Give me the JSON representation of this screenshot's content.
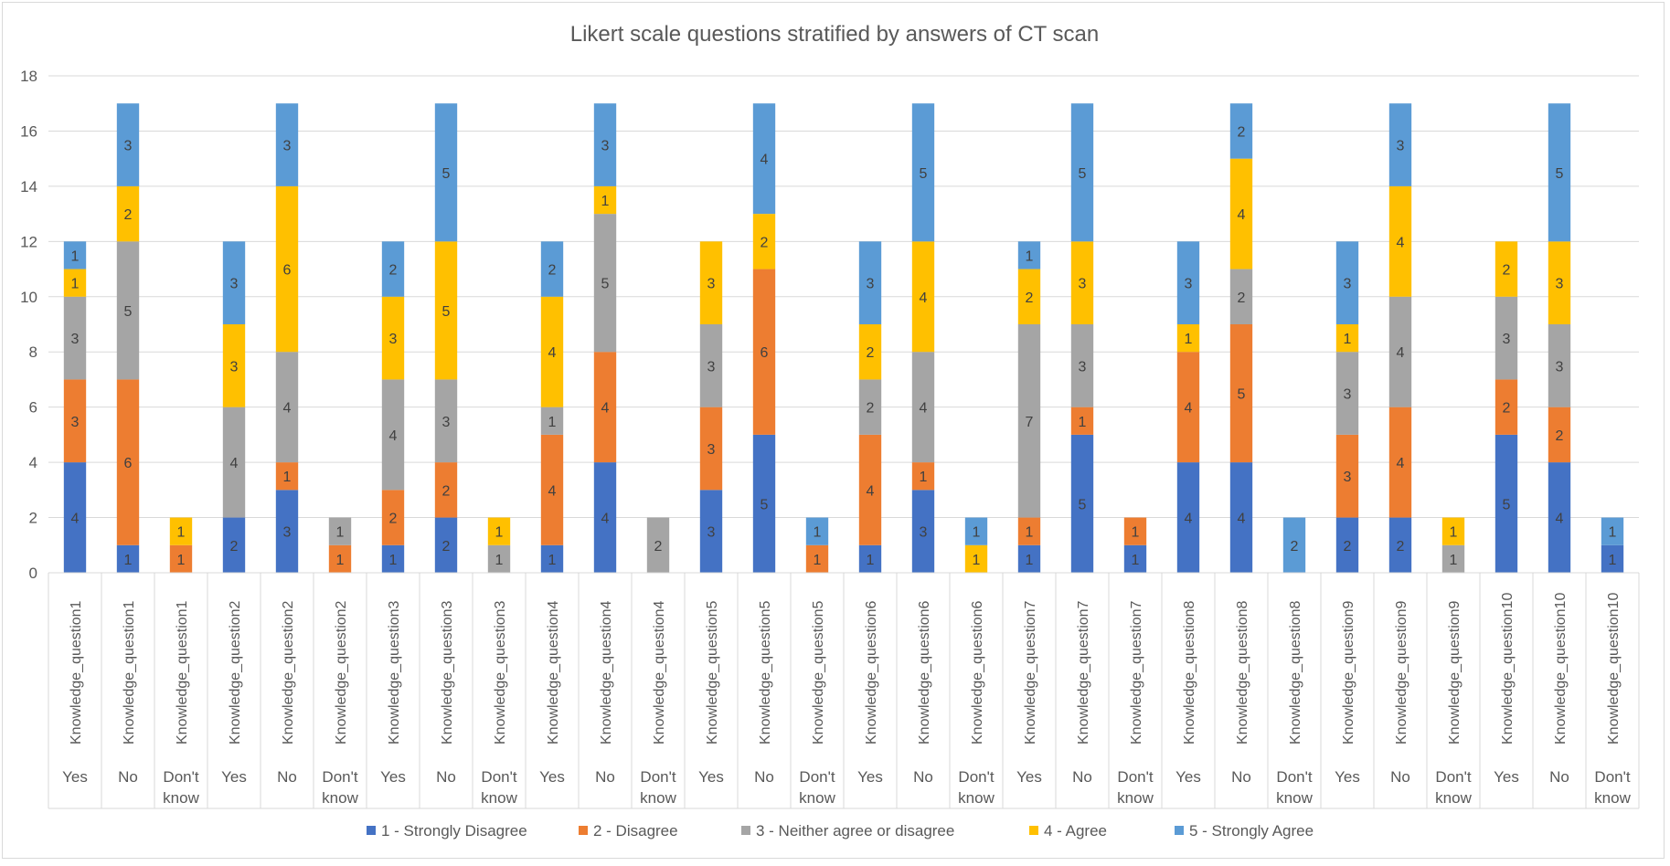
{
  "chart_data": {
    "type": "bar",
    "stacked": true,
    "title": "Likert scale questions stratified by answers of CT scan",
    "xlabel": "",
    "ylabel": "",
    "ylim": [
      0,
      18
    ],
    "yticks": [
      0,
      2,
      4,
      6,
      8,
      10,
      12,
      14,
      16,
      18
    ],
    "grid": true,
    "legend_position": "bottom",
    "categories": [
      {
        "question": "Knowledge_question1",
        "group": "Yes"
      },
      {
        "question": "Knowledge_question1",
        "group": "No"
      },
      {
        "question": "Knowledge_question1",
        "group": "Don't know"
      },
      {
        "question": "Knowledge_question2",
        "group": "Yes"
      },
      {
        "question": "Knowledge_question2",
        "group": "No"
      },
      {
        "question": "Knowledge_question2",
        "group": "Don't know"
      },
      {
        "question": "Knowledge_question3",
        "group": "Yes"
      },
      {
        "question": "Knowledge_question3",
        "group": "No"
      },
      {
        "question": "Knowledge_question3",
        "group": "Don't know"
      },
      {
        "question": "Knowledge_question4",
        "group": "Yes"
      },
      {
        "question": "Knowledge_question4",
        "group": "No"
      },
      {
        "question": "Knowledge_question4",
        "group": "Don't know"
      },
      {
        "question": "Knowledge_question5",
        "group": "Yes"
      },
      {
        "question": "Knowledge_question5",
        "group": "No"
      },
      {
        "question": "Knowledge_question5",
        "group": "Don't know"
      },
      {
        "question": "Knowledge_question6",
        "group": "Yes"
      },
      {
        "question": "Knowledge_question6",
        "group": "No"
      },
      {
        "question": "Knowledge_question6",
        "group": "Don't know"
      },
      {
        "question": "Knowledge_question7",
        "group": "Yes"
      },
      {
        "question": "Knowledge_question7",
        "group": "No"
      },
      {
        "question": "Knowledge_question7",
        "group": "Don't know"
      },
      {
        "question": "Knowledge_question8",
        "group": "Yes"
      },
      {
        "question": "Knowledge_question8",
        "group": "No"
      },
      {
        "question": "Knowledge_question8",
        "group": "Don't know"
      },
      {
        "question": "Knowledge_question9",
        "group": "Yes"
      },
      {
        "question": "Knowledge_question9",
        "group": "No"
      },
      {
        "question": "Knowledge_question9",
        "group": "Don't know"
      },
      {
        "question": "Knowledge_question10",
        "group": "Yes"
      },
      {
        "question": "Knowledge_question10",
        "group": "No"
      },
      {
        "question": "Knowledge_question10",
        "group": "Don't know"
      }
    ],
    "series": [
      {
        "name": "1 - Strongly Disagree",
        "color": "#4472C4",
        "values": [
          4,
          1,
          0,
          2,
          3,
          0,
          1,
          2,
          0,
          1,
          4,
          0,
          3,
          5,
          0,
          1,
          3,
          0,
          1,
          5,
          1,
          4,
          4,
          0,
          2,
          2,
          0,
          5,
          4,
          1
        ]
      },
      {
        "name": "2 - Disagree",
        "color": "#ED7D31",
        "values": [
          3,
          6,
          1,
          0,
          1,
          1,
          2,
          2,
          0,
          4,
          4,
          0,
          3,
          6,
          1,
          4,
          1,
          0,
          1,
          1,
          1,
          4,
          5,
          0,
          3,
          4,
          0,
          2,
          2,
          0
        ]
      },
      {
        "name": "3 - Neither agree or disagree",
        "color": "#A5A5A5",
        "values": [
          3,
          5,
          0,
          4,
          4,
          1,
          4,
          3,
          1,
          1,
          5,
          2,
          3,
          0,
          0,
          2,
          4,
          0,
          7,
          3,
          0,
          0,
          2,
          0,
          3,
          4,
          1,
          3,
          3,
          0
        ]
      },
      {
        "name": "4 - Agree",
        "color": "#FFC000",
        "values": [
          1,
          2,
          1,
          3,
          6,
          0,
          3,
          5,
          1,
          4,
          1,
          0,
          3,
          2,
          0,
          2,
          4,
          1,
          2,
          3,
          0,
          1,
          4,
          0,
          1,
          4,
          1,
          2,
          3,
          0
        ]
      },
      {
        "name": "5 - Strongly Agree",
        "color": "#5B9BD5",
        "values": [
          1,
          3,
          0,
          3,
          3,
          0,
          2,
          5,
          0,
          2,
          3,
          0,
          0,
          4,
          1,
          3,
          5,
          1,
          1,
          5,
          0,
          3,
          2,
          2,
          3,
          3,
          0,
          0,
          5,
          1
        ]
      }
    ],
    "colors": {
      "axis_text": "#595959",
      "gridline": "#d9d9d9",
      "label_dark": "#404040"
    }
  }
}
